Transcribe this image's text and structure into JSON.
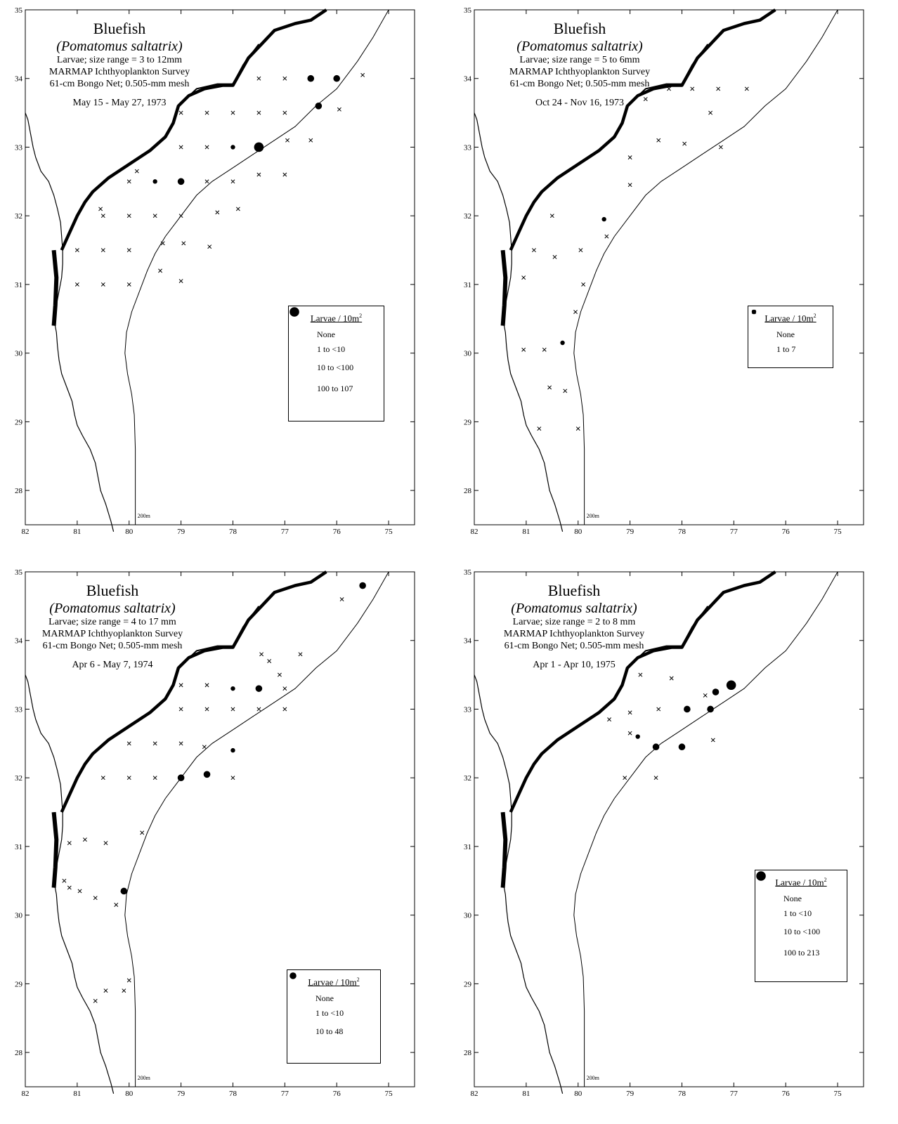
{
  "axes": {
    "lon_ticks": [
      "82",
      "81",
      "80",
      "79",
      "78",
      "77",
      "76",
      "75"
    ],
    "lat_ticks": [
      "35",
      "34",
      "33",
      "32",
      "31",
      "30",
      "29",
      "28"
    ],
    "lon_range": [
      82,
      74.5
    ],
    "lat_range": [
      27.5,
      35
    ],
    "isobath_label": "200m"
  },
  "colors": {
    "ink": "#000000",
    "background": "#ffffff"
  },
  "panels": [
    {
      "title": "Bluefish",
      "species": "(Pomatomus saltatrix)",
      "size_line": "Larvae; size range = 3 to 12mm",
      "survey": "MARMAP Ichthyoplankton Survey",
      "gear": "61-cm Bongo Net; 0.505-mm mesh",
      "dates": "May 15 - May 27, 1973",
      "legend": {
        "heading": "Larvae / 10m",
        "heading_sup": "2",
        "items": [
          {
            "label": "None",
            "symbol": "x"
          },
          {
            "label": "1 to <10",
            "symbol": "s"
          },
          {
            "label": "10 to <100",
            "symbol": "m"
          },
          {
            "label": "100 to 107",
            "symbol": "l"
          }
        ]
      },
      "stations": [
        [
          77.5,
          34.0,
          "x"
        ],
        [
          77.0,
          34.0,
          "x"
        ],
        [
          76.5,
          34.0,
          "m"
        ],
        [
          76.0,
          34.0,
          "m"
        ],
        [
          75.5,
          34.05,
          "x"
        ],
        [
          79.0,
          33.5,
          "x"
        ],
        [
          78.5,
          33.5,
          "x"
        ],
        [
          78.0,
          33.5,
          "x"
        ],
        [
          77.5,
          33.5,
          "x"
        ],
        [
          77.0,
          33.5,
          "x"
        ],
        [
          76.35,
          33.6,
          "m"
        ],
        [
          75.95,
          33.55,
          "x"
        ],
        [
          79.0,
          33.0,
          "x"
        ],
        [
          78.5,
          33.0,
          "x"
        ],
        [
          78.0,
          33.0,
          "s"
        ],
        [
          77.5,
          33.0,
          "l"
        ],
        [
          76.95,
          33.1,
          "x"
        ],
        [
          76.5,
          33.1,
          "x"
        ],
        [
          80.0,
          32.5,
          "x"
        ],
        [
          79.5,
          32.5,
          "s"
        ],
        [
          79.0,
          32.5,
          "m"
        ],
        [
          78.5,
          32.5,
          "x"
        ],
        [
          78.0,
          32.5,
          "x"
        ],
        [
          77.5,
          32.6,
          "x"
        ],
        [
          77.0,
          32.6,
          "x"
        ],
        [
          79.85,
          32.65,
          "x"
        ],
        [
          80.55,
          32.1,
          "x"
        ],
        [
          80.5,
          32.0,
          "x"
        ],
        [
          80.0,
          32.0,
          "x"
        ],
        [
          79.5,
          32.0,
          "x"
        ],
        [
          79.0,
          32.0,
          "x"
        ],
        [
          78.3,
          32.05,
          "x"
        ],
        [
          77.9,
          32.1,
          "x"
        ],
        [
          81.0,
          31.5,
          "x"
        ],
        [
          80.5,
          31.5,
          "x"
        ],
        [
          80.0,
          31.5,
          "x"
        ],
        [
          79.35,
          31.6,
          "x"
        ],
        [
          78.95,
          31.6,
          "x"
        ],
        [
          78.45,
          31.55,
          "x"
        ],
        [
          81.0,
          31.0,
          "x"
        ],
        [
          80.5,
          31.0,
          "x"
        ],
        [
          80.0,
          31.0,
          "x"
        ],
        [
          79.4,
          31.2,
          "x"
        ],
        [
          79.0,
          31.05,
          "x"
        ]
      ]
    },
    {
      "title": "Bluefish",
      "species": "(Pomatomus saltatrix)",
      "size_line": "Larvae; size range = 5 to 6mm",
      "survey": "MARMAP Ichthyoplankton Survey",
      "gear": "61-cm Bongo Net; 0.505-mm mesh",
      "dates": "Oct 24 - Nov 16, 1973",
      "legend": {
        "heading": "Larvae / 10m",
        "heading_sup": "2",
        "items": [
          {
            "label": "None",
            "symbol": "x"
          },
          {
            "label": "1 to 7",
            "symbol": "s"
          }
        ]
      },
      "stations": [
        [
          78.25,
          33.85,
          "x"
        ],
        [
          77.8,
          33.85,
          "x"
        ],
        [
          77.3,
          33.85,
          "x"
        ],
        [
          76.75,
          33.85,
          "x"
        ],
        [
          78.7,
          33.7,
          "x"
        ],
        [
          77.45,
          33.5,
          "x"
        ],
        [
          78.45,
          33.1,
          "x"
        ],
        [
          77.95,
          33.05,
          "x"
        ],
        [
          77.25,
          33.0,
          "x"
        ],
        [
          79.0,
          32.85,
          "x"
        ],
        [
          79.0,
          32.45,
          "x"
        ],
        [
          80.5,
          32.0,
          "x"
        ],
        [
          79.5,
          31.95,
          "s"
        ],
        [
          79.45,
          31.7,
          "x"
        ],
        [
          80.85,
          31.5,
          "x"
        ],
        [
          80.45,
          31.4,
          "x"
        ],
        [
          79.95,
          31.5,
          "x"
        ],
        [
          81.05,
          31.1,
          "x"
        ],
        [
          79.9,
          31.0,
          "x"
        ],
        [
          80.05,
          30.6,
          "x"
        ],
        [
          80.3,
          30.15,
          "s"
        ],
        [
          81.05,
          30.05,
          "x"
        ],
        [
          80.65,
          30.05,
          "x"
        ],
        [
          80.55,
          29.5,
          "x"
        ],
        [
          80.25,
          29.45,
          "x"
        ],
        [
          80.75,
          28.9,
          "x"
        ],
        [
          80.0,
          28.9,
          "x"
        ]
      ]
    },
    {
      "title": "Bluefish",
      "species": "(Pomatomus saltatrix)",
      "size_line": "Larvae; size range = 4 to 17 mm",
      "survey": "MARMAP Ichthyoplankton Survey",
      "gear": "61-cm Bongo Net; 0.505-mm mesh",
      "dates": "Apr 6 - May 7, 1974",
      "legend": {
        "heading": "Larvae / 10m",
        "heading_sup": "2",
        "items": [
          {
            "label": "None",
            "symbol": "x"
          },
          {
            "label": "1 to <10",
            "symbol": "s"
          },
          {
            "label": "10 to 48",
            "symbol": "m"
          }
        ]
      },
      "stations": [
        [
          75.5,
          34.8,
          "m"
        ],
        [
          75.9,
          34.6,
          "x"
        ],
        [
          76.7,
          33.8,
          "x"
        ],
        [
          77.45,
          33.8,
          "x"
        ],
        [
          77.3,
          33.7,
          "x"
        ],
        [
          77.1,
          33.5,
          "x"
        ],
        [
          79.0,
          33.35,
          "x"
        ],
        [
          78.5,
          33.35,
          "x"
        ],
        [
          78.0,
          33.3,
          "s"
        ],
        [
          77.5,
          33.3,
          "m"
        ],
        [
          77.0,
          33.3,
          "x"
        ],
        [
          79.0,
          33.0,
          "x"
        ],
        [
          78.5,
          33.0,
          "x"
        ],
        [
          78.0,
          33.0,
          "x"
        ],
        [
          77.5,
          33.0,
          "x"
        ],
        [
          77.0,
          33.0,
          "x"
        ],
        [
          80.0,
          32.5,
          "x"
        ],
        [
          79.5,
          32.5,
          "x"
        ],
        [
          79.0,
          32.5,
          "x"
        ],
        [
          78.55,
          32.45,
          "x"
        ],
        [
          78.0,
          32.4,
          "s"
        ],
        [
          80.5,
          32.0,
          "x"
        ],
        [
          80.0,
          32.0,
          "x"
        ],
        [
          79.5,
          32.0,
          "x"
        ],
        [
          79.0,
          32.0,
          "m"
        ],
        [
          78.5,
          32.05,
          "m"
        ],
        [
          78.0,
          32.0,
          "x"
        ],
        [
          81.15,
          31.05,
          "x"
        ],
        [
          80.85,
          31.1,
          "x"
        ],
        [
          80.45,
          31.05,
          "x"
        ],
        [
          79.75,
          31.2,
          "x"
        ],
        [
          81.25,
          30.5,
          "x"
        ],
        [
          81.15,
          30.4,
          "x"
        ],
        [
          80.95,
          30.35,
          "x"
        ],
        [
          80.65,
          30.25,
          "x"
        ],
        [
          80.25,
          30.15,
          "x"
        ],
        [
          80.1,
          30.35,
          "m"
        ],
        [
          80.45,
          28.9,
          "x"
        ],
        [
          80.1,
          28.9,
          "x"
        ],
        [
          80.0,
          29.05,
          "x"
        ],
        [
          80.65,
          28.75,
          "x"
        ]
      ]
    },
    {
      "title": "Bluefish",
      "species": "(Pomatomus saltatrix)",
      "size_line": "Larvae; size range = 2 to 8 mm",
      "survey": "MARMAP Ichthyoplankton Survey",
      "gear": "61-cm Bongo Net; 0.505-mm mesh",
      "dates": "Apr 1 - Apr 10, 1975",
      "legend": {
        "heading": "Larvae / 10m",
        "heading_sup": "2",
        "items": [
          {
            "label": "None",
            "symbol": "x"
          },
          {
            "label": "1 to <10",
            "symbol": "s"
          },
          {
            "label": "10 to <100",
            "symbol": "m"
          },
          {
            "label": "100 to 213",
            "symbol": "l"
          }
        ]
      },
      "stations": [
        [
          78.8,
          33.5,
          "x"
        ],
        [
          78.2,
          33.45,
          "x"
        ],
        [
          77.05,
          33.35,
          "l"
        ],
        [
          77.35,
          33.25,
          "m"
        ],
        [
          77.55,
          33.2,
          "x"
        ],
        [
          79.4,
          32.85,
          "x"
        ],
        [
          79.0,
          32.95,
          "x"
        ],
        [
          78.45,
          33.0,
          "x"
        ],
        [
          77.9,
          33.0,
          "m"
        ],
        [
          77.45,
          33.0,
          "m"
        ],
        [
          79.0,
          32.65,
          "x"
        ],
        [
          78.85,
          32.6,
          "s"
        ],
        [
          78.5,
          32.45,
          "m"
        ],
        [
          78.0,
          32.45,
          "m"
        ],
        [
          77.4,
          32.55,
          "x"
        ],
        [
          79.1,
          32.0,
          "x"
        ],
        [
          78.5,
          32.0,
          "x"
        ]
      ]
    }
  ]
}
